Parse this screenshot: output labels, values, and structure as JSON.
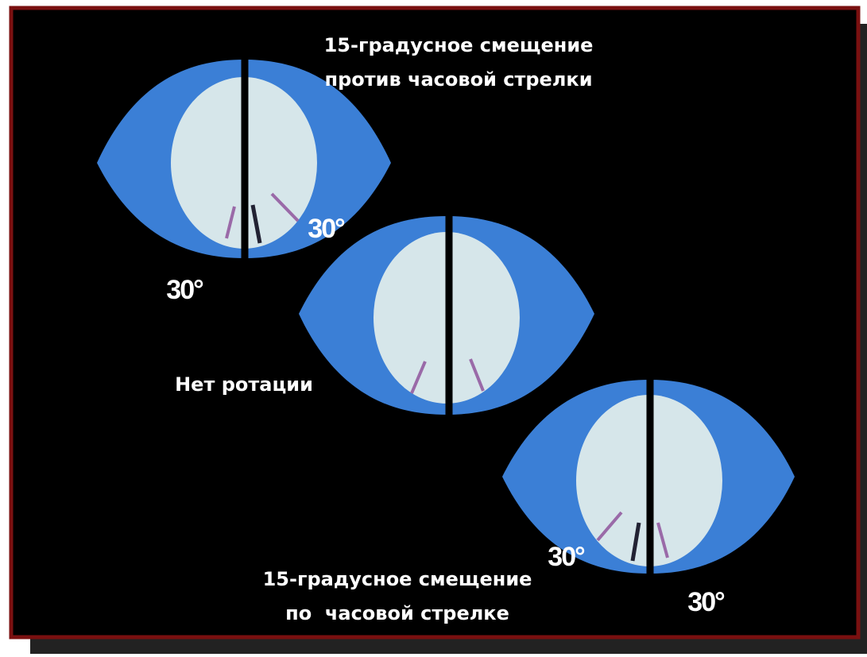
{
  "top_label": {
    "line1": "15-градусное смещение",
    "line2": "против часовой стрелки"
  },
  "middle_label": "Нет ротации",
  "bottom_label": {
    "line1": "15-градусное смещение",
    "line2": "по  часовой стрелке"
  },
  "angle_labels": [
    "30°",
    "30°",
    "30°",
    "30°"
  ]
}
